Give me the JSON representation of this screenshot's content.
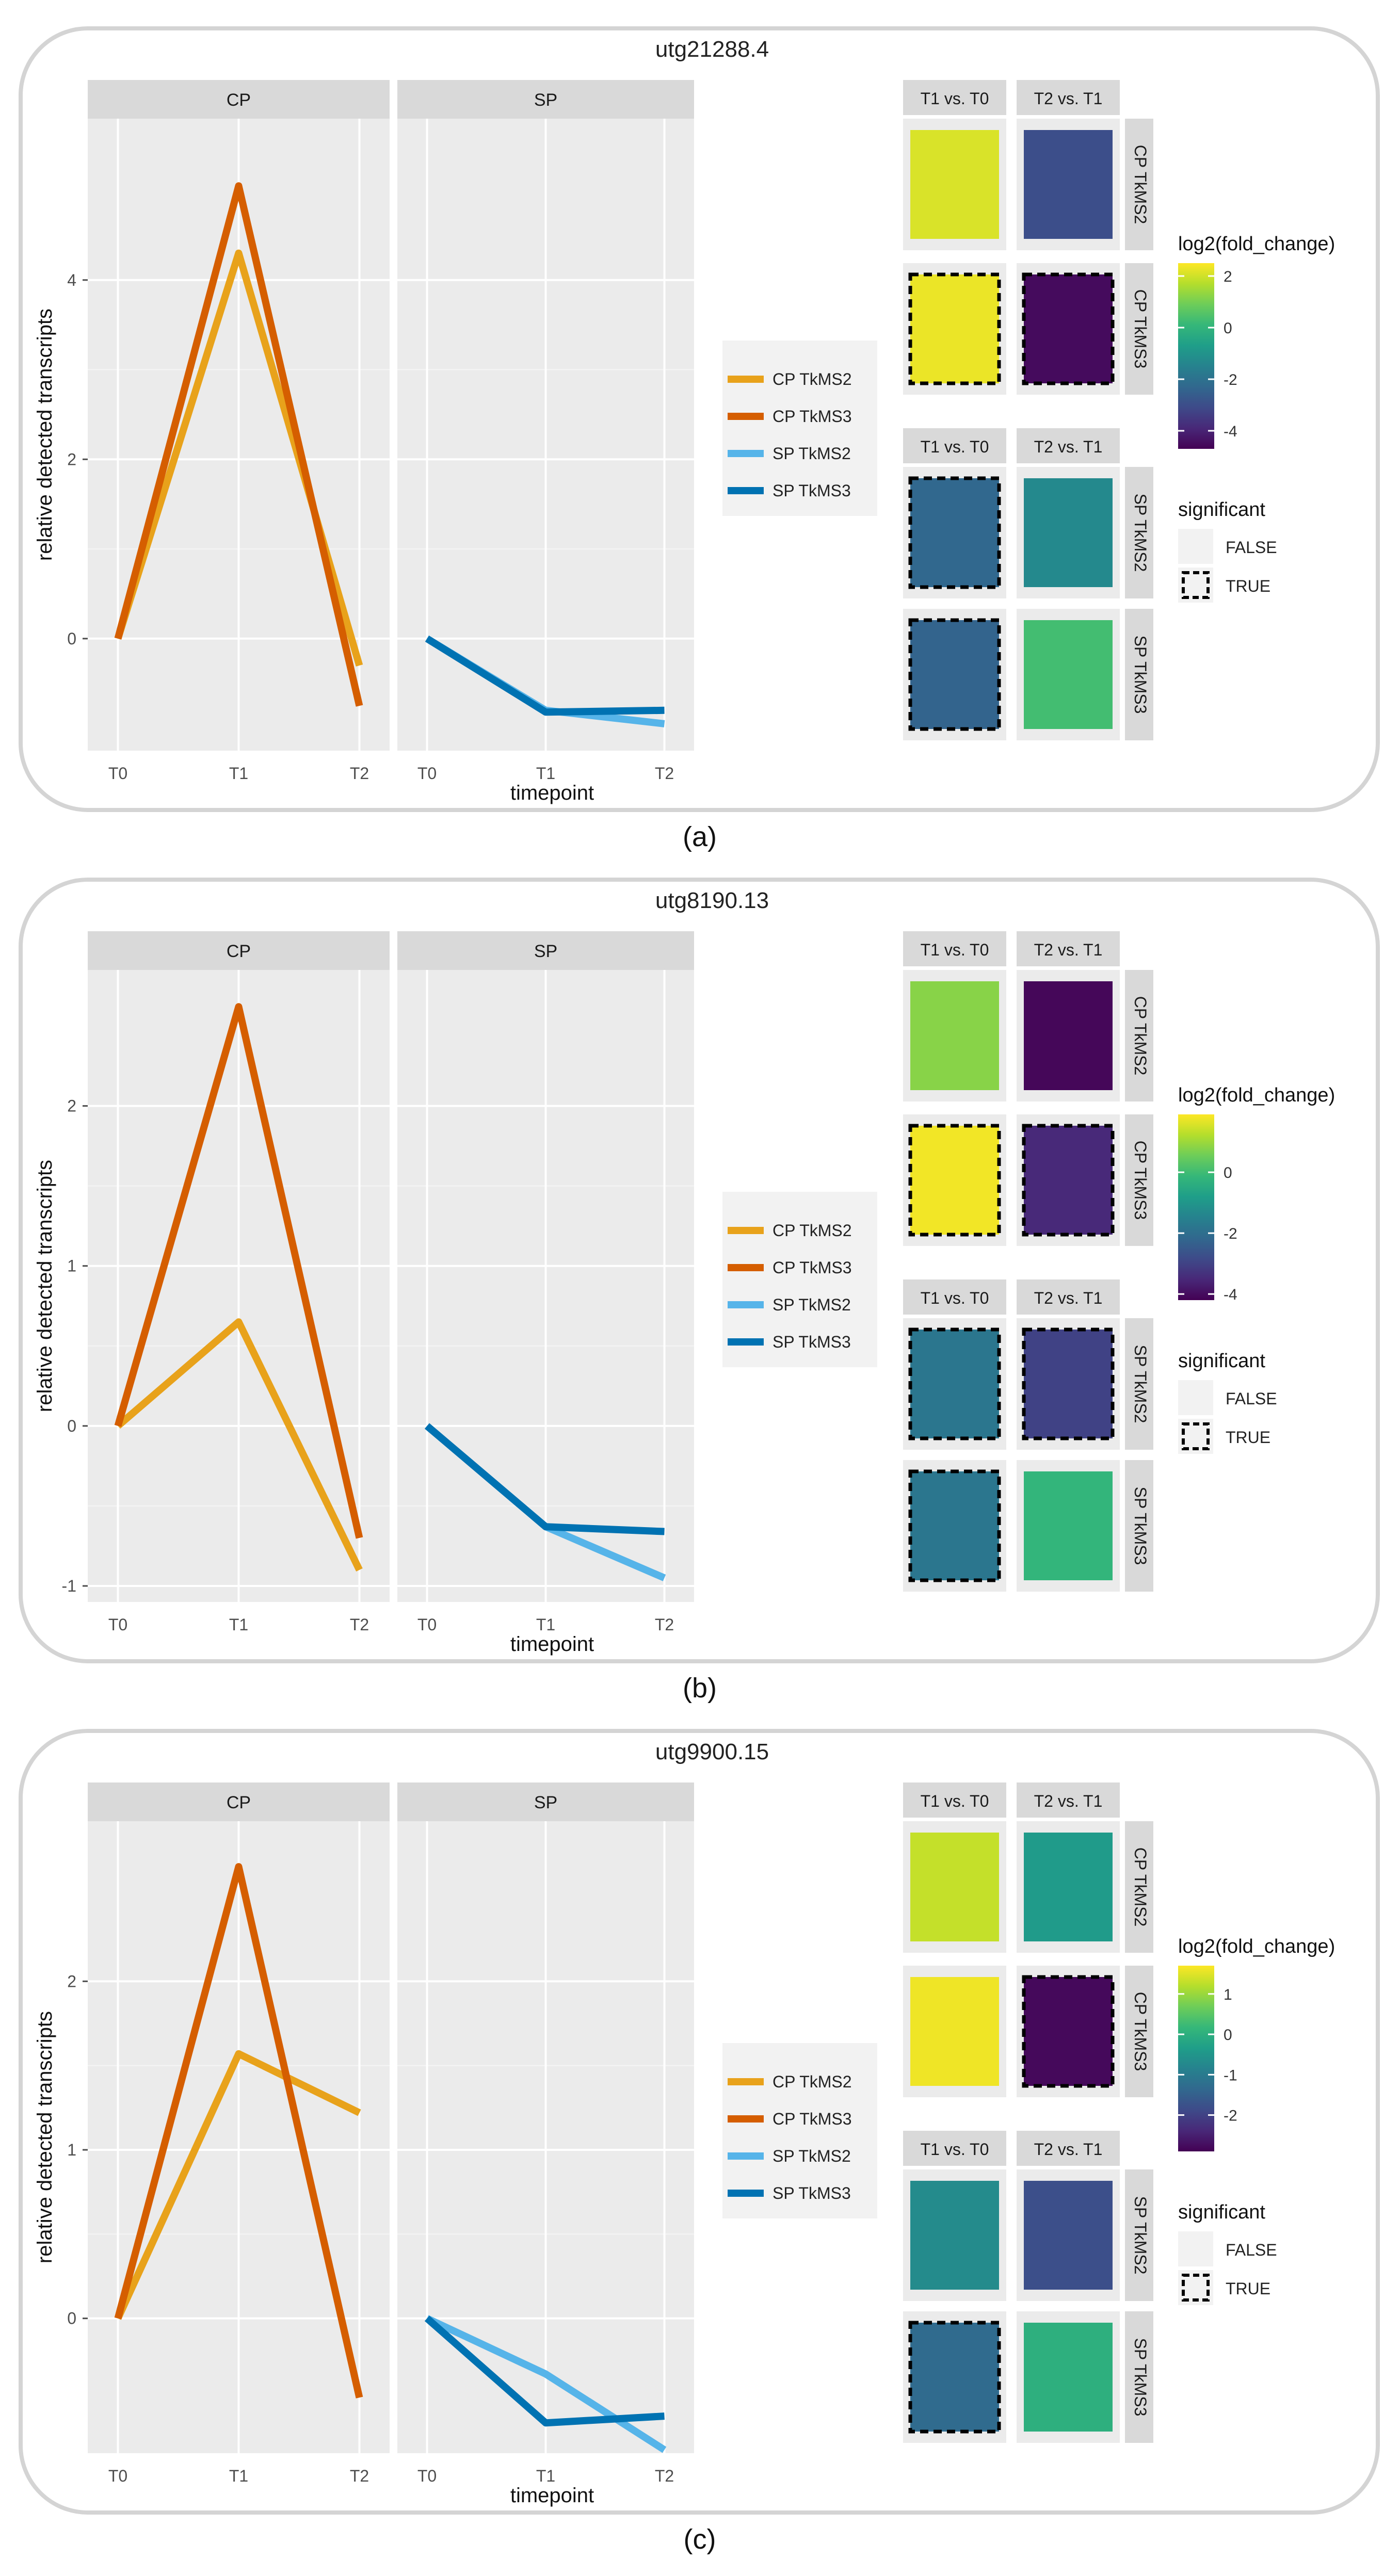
{
  "series_colors": {
    "CP TkMS2": "#E8A21B",
    "CP TkMS3": "#D55E00",
    "SP TkMS2": "#56B4E9",
    "SP TkMS3": "#0072B2"
  },
  "viridis": [
    "#440154",
    "#482878",
    "#3E4A89",
    "#31688E",
    "#26828E",
    "#1F9E89",
    "#35B779",
    "#6DCD59",
    "#B4DE2C",
    "#FDE725"
  ],
  "figure": {
    "facet_labels": [
      "CP",
      "SP"
    ],
    "comparison_labels": [
      "T1 vs. T0",
      "T2 vs. T1"
    ],
    "row_labels": [
      "CP TkMS2",
      "CP TkMS3",
      "SP TkMS2",
      "SP TkMS3"
    ],
    "legend_title": "log2(fold_change)",
    "significance_title": "significant",
    "significance_levels": [
      "FALSE",
      "TRUE"
    ]
  },
  "chart_data": [
    {
      "type": "line",
      "caption": "(a)",
      "title": "utg21288.4",
      "xlabel": "timepoint",
      "ylabel": "relative detected transcripts",
      "x": [
        "T0",
        "T1",
        "T2"
      ],
      "ylim": [
        -1.25,
        5.8
      ],
      "yticks": [
        0,
        2,
        4
      ],
      "facets": [
        {
          "name": "CP",
          "series": [
            {
              "name": "CP TkMS2",
              "values": [
                0,
                4.3,
                -0.3
              ]
            },
            {
              "name": "CP TkMS3",
              "values": [
                0,
                5.05,
                -0.75
              ]
            }
          ]
        },
        {
          "name": "SP",
          "series": [
            {
              "name": "SP TkMS2",
              "values": [
                0,
                -0.8,
                -0.95
              ]
            },
            {
              "name": "SP TkMS3",
              "values": [
                0,
                -0.82,
                -0.8
              ]
            }
          ]
        }
      ],
      "heatmap": {
        "cells": [
          {
            "row": "CP TkMS2",
            "col": "T1 vs. T0",
            "value": 2.1,
            "significant": false
          },
          {
            "row": "CP TkMS2",
            "col": "T2 vs. T1",
            "value": -3.0,
            "significant": false
          },
          {
            "row": "CP TkMS3",
            "col": "T1 vs. T0",
            "value": 2.3,
            "significant": true
          },
          {
            "row": "CP TkMS3",
            "col": "T2 vs. T1",
            "value": -4.5,
            "significant": true
          },
          {
            "row": "SP TkMS2",
            "col": "T1 vs. T0",
            "value": -2.3,
            "significant": true
          },
          {
            "row": "SP TkMS2",
            "col": "T2 vs. T1",
            "value": -1.3,
            "significant": false
          },
          {
            "row": "SP TkMS3",
            "col": "T1 vs. T0",
            "value": -2.4,
            "significant": true
          },
          {
            "row": "SP TkMS3",
            "col": "T2 vs. T1",
            "value": 0.3,
            "significant": false
          }
        ],
        "scale_min": -4.7,
        "scale_max": 2.5,
        "ticks": [
          2,
          0,
          -2,
          -4
        ]
      }
    },
    {
      "type": "line",
      "caption": "(b)",
      "title": "utg8190.13",
      "xlabel": "timepoint",
      "ylabel": "relative detected transcripts",
      "x": [
        "T0",
        "T1",
        "T2"
      ],
      "ylim": [
        -1.1,
        2.85
      ],
      "yticks": [
        -1,
        0,
        1,
        2
      ],
      "facets": [
        {
          "name": "CP",
          "series": [
            {
              "name": "CP TkMS2",
              "values": [
                0,
                0.65,
                -0.9
              ]
            },
            {
              "name": "CP TkMS3",
              "values": [
                0,
                2.62,
                -0.7
              ]
            }
          ]
        },
        {
          "name": "SP",
          "series": [
            {
              "name": "SP TkMS2",
              "values": [
                0,
                -0.63,
                -0.95
              ]
            },
            {
              "name": "SP TkMS3",
              "values": [
                0,
                -0.63,
                -0.66
              ]
            }
          ]
        }
      ],
      "heatmap": {
        "cells": [
          {
            "row": "CP TkMS2",
            "col": "T1 vs. T0",
            "value": 0.8,
            "significant": false
          },
          {
            "row": "CP TkMS2",
            "col": "T2 vs. T1",
            "value": -4.1,
            "significant": false
          },
          {
            "row": "CP TkMS3",
            "col": "T1 vs. T0",
            "value": 1.8,
            "significant": true
          },
          {
            "row": "CP TkMS3",
            "col": "T2 vs. T1",
            "value": -3.5,
            "significant": true
          },
          {
            "row": "SP TkMS2",
            "col": "T1 vs. T0",
            "value": -1.8,
            "significant": true
          },
          {
            "row": "SP TkMS2",
            "col": "T2 vs. T1",
            "value": -3.0,
            "significant": true
          },
          {
            "row": "SP TkMS3",
            "col": "T1 vs. T0",
            "value": -1.8,
            "significant": true
          },
          {
            "row": "SP TkMS3",
            "col": "T2 vs. T1",
            "value": -0.2,
            "significant": false
          }
        ],
        "scale_min": -4.2,
        "scale_max": 1.9,
        "ticks": [
          0,
          -2,
          -4
        ]
      }
    },
    {
      "type": "line",
      "caption": "(c)",
      "title": "utg9900.15",
      "xlabel": "timepoint",
      "ylabel": "relative detected transcripts",
      "x": [
        "T0",
        "T1",
        "T2"
      ],
      "ylim": [
        -0.8,
        2.95
      ],
      "yticks": [
        0,
        1,
        2
      ],
      "facets": [
        {
          "name": "CP",
          "series": [
            {
              "name": "CP TkMS2",
              "values": [
                0,
                1.57,
                1.22
              ]
            },
            {
              "name": "CP TkMS3",
              "values": [
                0,
                2.68,
                -0.47
              ]
            }
          ]
        },
        {
          "name": "SP",
          "series": [
            {
              "name": "SP TkMS2",
              "values": [
                0,
                -0.33,
                -0.78
              ]
            },
            {
              "name": "SP TkMS3",
              "values": [
                0,
                -0.62,
                -0.58
              ]
            }
          ]
        }
      ],
      "heatmap": {
        "cells": [
          {
            "row": "CP TkMS2",
            "col": "T1 vs. T0",
            "value": 1.3,
            "significant": false
          },
          {
            "row": "CP TkMS2",
            "col": "T2 vs. T1",
            "value": -0.4,
            "significant": false
          },
          {
            "row": "CP TkMS3",
            "col": "T1 vs. T0",
            "value": 1.6,
            "significant": false
          },
          {
            "row": "CP TkMS3",
            "col": "T2 vs. T1",
            "value": -2.8,
            "significant": true
          },
          {
            "row": "SP TkMS2",
            "col": "T1 vs. T0",
            "value": -0.7,
            "significant": false
          },
          {
            "row": "SP TkMS2",
            "col": "T2 vs. T1",
            "value": -1.8,
            "significant": false
          },
          {
            "row": "SP TkMS3",
            "col": "T1 vs. T0",
            "value": -1.3,
            "significant": true
          },
          {
            "row": "SP TkMS3",
            "col": "T2 vs. T1",
            "value": 0.0,
            "significant": false
          }
        ],
        "scale_min": -2.9,
        "scale_max": 1.7,
        "ticks": [
          1,
          0,
          -1,
          -2
        ]
      }
    }
  ]
}
